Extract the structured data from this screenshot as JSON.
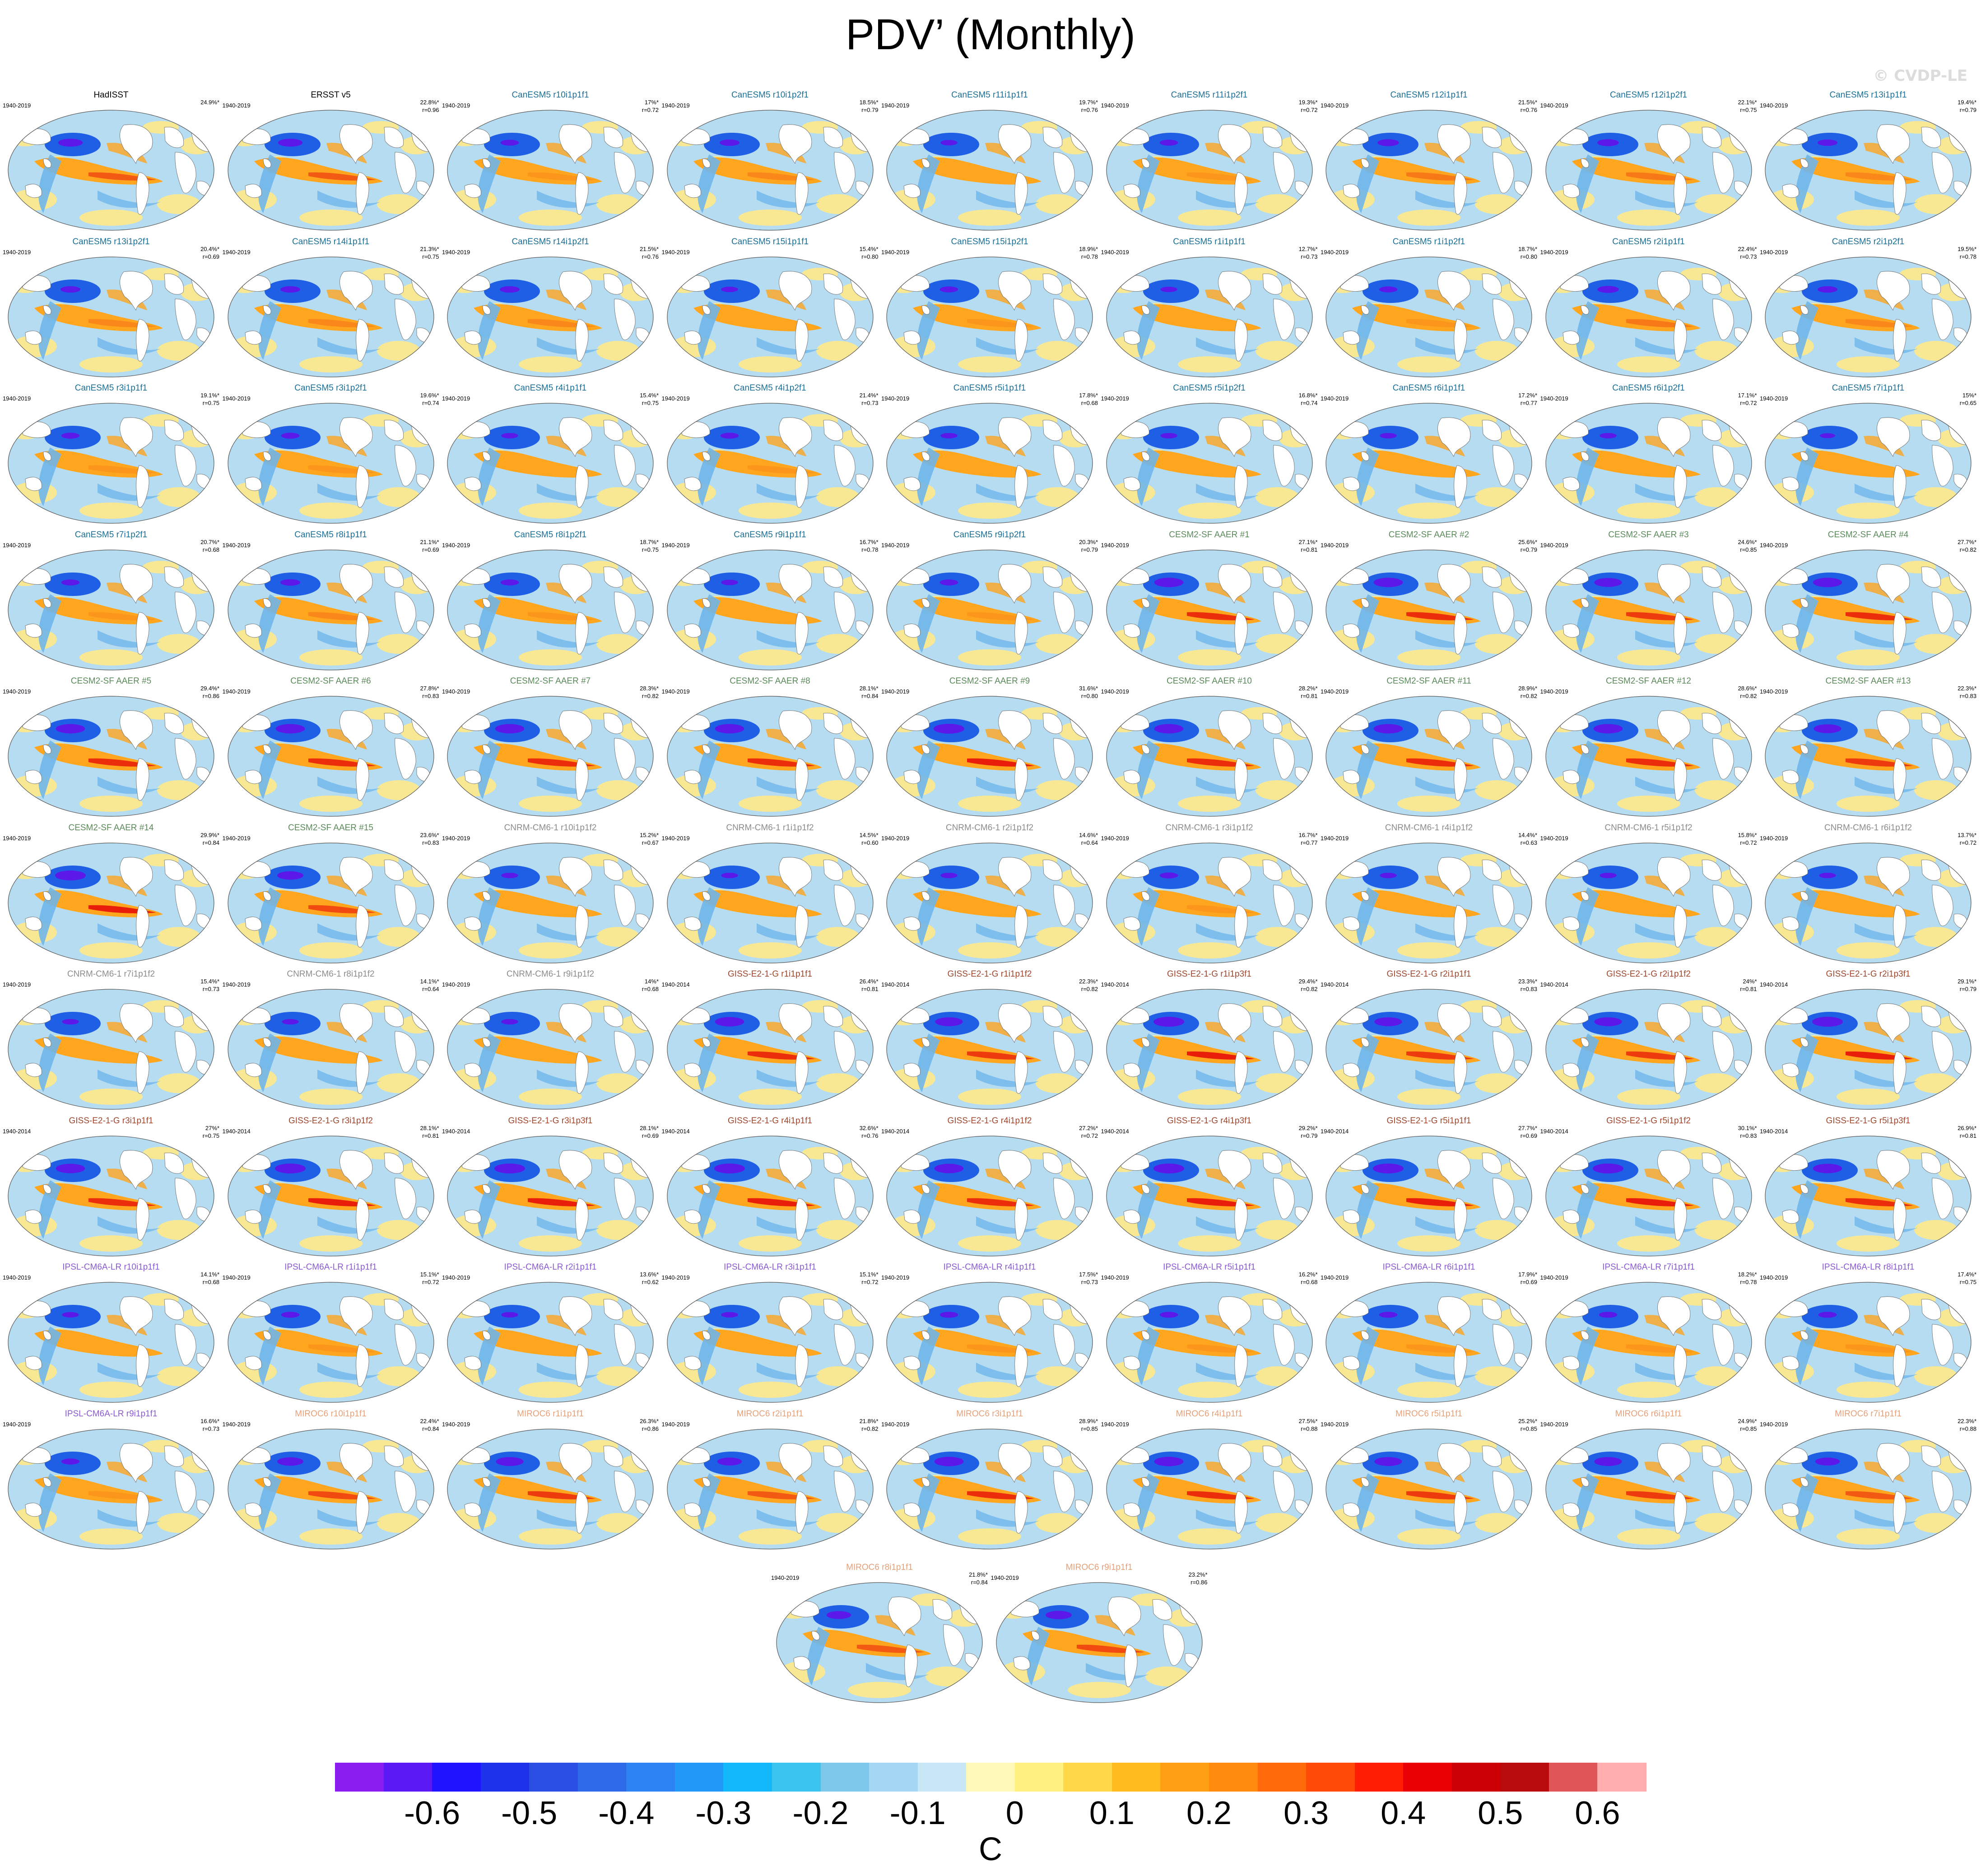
{
  "title": "PDV’ (Monthly)",
  "watermark": "© CVDP-LE",
  "colorbar": {
    "unit": "C",
    "tick_labels": [
      "-0.6",
      "-0.5",
      "-0.4",
      "-0.3",
      "-0.2",
      "-0.1",
      "0",
      "0.1",
      "0.2",
      "0.3",
      "0.4",
      "0.5",
      "0.6"
    ],
    "colors": [
      "#8a1ef0",
      "#5a19f5",
      "#1e14ff",
      "#1e32ec",
      "#2a4ee4",
      "#2d6ae8",
      "#2b84f2",
      "#2299f6",
      "#12b8fa",
      "#3cc4f0",
      "#7ec8ec",
      "#a5d6f2",
      "#c8e6f6",
      "#fff8b8",
      "#fff080",
      "#ffd84a",
      "#ffbc1e",
      "#ffa014",
      "#ff8a0e",
      "#ff6a0a",
      "#ff4a08",
      "#ff1e04",
      "#ea0004",
      "#cc0004",
      "#b80c0c",
      "#e05555",
      "#ffadad"
    ]
  },
  "map_colors": {
    "ocean_base": "#b6dcf2",
    "blue_pool": "#1f5fe6",
    "deep_blue": "#5b18e8",
    "warm_tongue": "#ffa51e",
    "red_core": "#e81e0a",
    "yellow": "#ffe98a",
    "land": "#ffffff"
  },
  "panels": [
    {
      "label": "HadISST",
      "years": "1940-2019",
      "pct": "24.9%*",
      "r": "",
      "color": "#000000",
      "i": 0.8
    },
    {
      "label": "ERSST v5",
      "years": "1940-2019",
      "pct": "22.8%*",
      "r": "r=0.96",
      "color": "#000000",
      "i": 0.8
    },
    {
      "label": "CanESM5 r10i1p1f1",
      "years": "1940-2019",
      "pct": "17%*",
      "r": "r=0.72",
      "color": "#1a6f96",
      "i": 0.6
    },
    {
      "label": "CanESM5 r10i1p2f1",
      "years": "1940-2019",
      "pct": "18.5%*",
      "r": "r=0.79",
      "color": "#1a6f96",
      "i": 0.65
    },
    {
      "label": "CanESM5 r11i1p1f1",
      "years": "1940-2019",
      "pct": "19.7%*",
      "r": "r=0.76",
      "color": "#1a6f96",
      "i": 0.55
    },
    {
      "label": "CanESM5 r11i1p2f1",
      "years": "1940-2019",
      "pct": "19.3%*",
      "r": "r=0.72",
      "color": "#1a6f96",
      "i": 0.6
    },
    {
      "label": "CanESM5 r12i1p1f1",
      "years": "1940-2019",
      "pct": "21.5%*",
      "r": "r=0.76",
      "color": "#1a6f96",
      "i": 0.7
    },
    {
      "label": "CanESM5 r12i1p2f1",
      "years": "1940-2019",
      "pct": "22.1%*",
      "r": "r=0.75",
      "color": "#1a6f96",
      "i": 0.7
    },
    {
      "label": "CanESM5 r13i1p1f1",
      "years": "1940-2019",
      "pct": "19.4%*",
      "r": "r=0.79",
      "color": "#1a6f96",
      "i": 0.65
    },
    {
      "label": "CanESM5 r13i1p2f1",
      "years": "1940-2019",
      "pct": "20.4%*",
      "r": "r=0.69",
      "color": "#1a6f96",
      "i": 0.65
    },
    {
      "label": "CanESM5 r14i1p1f1",
      "years": "1940-2019",
      "pct": "21.3%*",
      "r": "r=0.75",
      "color": "#1a6f96",
      "i": 0.65
    },
    {
      "label": "CanESM5 r14i1p2f1",
      "years": "1940-2019",
      "pct": "21.5%*",
      "r": "r=0.76",
      "color": "#1a6f96",
      "i": 0.65
    },
    {
      "label": "CanESM5 r15i1p1f1",
      "years": "1940-2019",
      "pct": "15.4%*",
      "r": "r=0.80",
      "color": "#1a6f96",
      "i": 0.55
    },
    {
      "label": "CanESM5 r15i1p2f1",
      "years": "1940-2019",
      "pct": "18.9%*",
      "r": "r=0.78",
      "color": "#1a6f96",
      "i": 0.6
    },
    {
      "label": "CanESM5 r1i1p1f1",
      "years": "1940-2019",
      "pct": "12.7%*",
      "r": "r=0.73",
      "color": "#1a6f96",
      "i": 0.55
    },
    {
      "label": "CanESM5 r1i1p2f1",
      "years": "1940-2019",
      "pct": "18.7%*",
      "r": "r=0.80",
      "color": "#1a6f96",
      "i": 0.6
    },
    {
      "label": "CanESM5 r2i1p1f1",
      "years": "1940-2019",
      "pct": "22.4%*",
      "r": "r=0.73",
      "color": "#1a6f96",
      "i": 0.7
    },
    {
      "label": "CanESM5 r2i1p2f1",
      "years": "1940-2019",
      "pct": "19.5%*",
      "r": "r=0.78",
      "color": "#1a6f96",
      "i": 0.65
    },
    {
      "label": "CanESM5 r3i1p1f1",
      "years": "1940-2019",
      "pct": "19.1%*",
      "r": "r=0.75",
      "color": "#1a6f96",
      "i": 0.6
    },
    {
      "label": "CanESM5 r3i1p2f1",
      "years": "1940-2019",
      "pct": "19.6%*",
      "r": "r=0.74",
      "color": "#1a6f96",
      "i": 0.6
    },
    {
      "label": "CanESM5 r4i1p1f1",
      "years": "1940-2019",
      "pct": "15.4%*",
      "r": "r=0.75",
      "color": "#1a6f96",
      "i": 0.55
    },
    {
      "label": "CanESM5 r4i1p2f1",
      "years": "1940-2019",
      "pct": "21.4%*",
      "r": "r=0.73",
      "color": "#1a6f96",
      "i": 0.6
    },
    {
      "label": "CanESM5 r5i1p1f1",
      "years": "1940-2019",
      "pct": "17.8%*",
      "r": "r=0.68",
      "color": "#1a6f96",
      "i": 0.55
    },
    {
      "label": "CanESM5 r5i1p2f1",
      "years": "1940-2019",
      "pct": "16.8%*",
      "r": "r=0.74",
      "color": "#1a6f96",
      "i": 0.55
    },
    {
      "label": "CanESM5 r6i1p1f1",
      "years": "1940-2019",
      "pct": "17.2%*",
      "r": "r=0.77",
      "color": "#1a6f96",
      "i": 0.55
    },
    {
      "label": "CanESM5 r6i1p2f1",
      "years": "1940-2019",
      "pct": "17.1%*",
      "r": "r=0.72",
      "color": "#1a6f96",
      "i": 0.55
    },
    {
      "label": "CanESM5 r7i1p1f1",
      "years": "1940-2019",
      "pct": "15%*",
      "r": "r=0.65",
      "color": "#1a6f96",
      "i": 0.5
    },
    {
      "label": "CanESM5 r7i1p2f1",
      "years": "1940-2019",
      "pct": "20.7%*",
      "r": "r=0.68",
      "color": "#1a6f96",
      "i": 0.6
    },
    {
      "label": "CanESM5 r8i1p1f1",
      "years": "1940-2019",
      "pct": "21.1%*",
      "r": "r=0.69",
      "color": "#1a6f96",
      "i": 0.65
    },
    {
      "label": "CanESM5 r8i1p2f1",
      "years": "1940-2019",
      "pct": "18.7%*",
      "r": "r=0.75",
      "color": "#1a6f96",
      "i": 0.6
    },
    {
      "label": "CanESM5 r9i1p1f1",
      "years": "1940-2019",
      "pct": "16.7%*",
      "r": "r=0.78",
      "color": "#1a6f96",
      "i": 0.55
    },
    {
      "label": "CanESM5 r9i1p2f1",
      "years": "1940-2019",
      "pct": "20.3%*",
      "r": "r=0.79",
      "color": "#1a6f96",
      "i": 0.6
    },
    {
      "label": "CESM2-SF AAER #1",
      "years": "1940-2019",
      "pct": "27.1%*",
      "r": "r=0.81",
      "color": "#5a8a5a",
      "i": 0.95
    },
    {
      "label": "CESM2-SF AAER #2",
      "years": "1940-2019",
      "pct": "25.6%*",
      "r": "r=0.79",
      "color": "#5a8a5a",
      "i": 0.95
    },
    {
      "label": "CESM2-SF AAER #3",
      "years": "1940-2019",
      "pct": "24.6%*",
      "r": "r=0.85",
      "color": "#5a8a5a",
      "i": 0.9
    },
    {
      "label": "CESM2-SF AAER #4",
      "years": "1940-2019",
      "pct": "27.7%*",
      "r": "r=0.82",
      "color": "#5a8a5a",
      "i": 0.95
    },
    {
      "label": "CESM2-SF AAER #5",
      "years": "1940-2019",
      "pct": "29.4%*",
      "r": "r=0.86",
      "color": "#5a8a5a",
      "i": 0.95
    },
    {
      "label": "CESM2-SF AAER #6",
      "years": "1940-2019",
      "pct": "27.8%*",
      "r": "r=0.83",
      "color": "#5a8a5a",
      "i": 0.95
    },
    {
      "label": "CESM2-SF AAER #7",
      "years": "1940-2019",
      "pct": "28.3%*",
      "r": "r=0.82",
      "color": "#5a8a5a",
      "i": 0.95
    },
    {
      "label": "CESM2-SF AAER #8",
      "years": "1940-2019",
      "pct": "28.1%*",
      "r": "r=0.84",
      "color": "#5a8a5a",
      "i": 0.95
    },
    {
      "label": "CESM2-SF AAER #9",
      "years": "1940-2019",
      "pct": "31.6%*",
      "r": "r=0.80",
      "color": "#5a8a5a",
      "i": 1.0
    },
    {
      "label": "CESM2-SF AAER #10",
      "years": "1940-2019",
      "pct": "28.2%*",
      "r": "r=0.81",
      "color": "#5a8a5a",
      "i": 0.95
    },
    {
      "label": "CESM2-SF AAER #11",
      "years": "1940-2019",
      "pct": "28.9%*",
      "r": "r=0.82",
      "color": "#5a8a5a",
      "i": 0.95
    },
    {
      "label": "CESM2-SF AAER #12",
      "years": "1940-2019",
      "pct": "28.6%*",
      "r": "r=0.82",
      "color": "#5a8a5a",
      "i": 0.95
    },
    {
      "label": "CESM2-SF AAER #13",
      "years": "1940-2019",
      "pct": "22.3%*",
      "r": "r=0.83",
      "color": "#5a8a5a",
      "i": 0.9
    },
    {
      "label": "CESM2-SF AAER #14",
      "years": "1940-2019",
      "pct": "29.9%*",
      "r": "r=0.84",
      "color": "#5a8a5a",
      "i": 1.0
    },
    {
      "label": "CESM2-SF AAER #15",
      "years": "1940-2019",
      "pct": "23.6%*",
      "r": "r=0.83",
      "color": "#5a8a5a",
      "i": 0.85
    },
    {
      "label": "CNRM-CM6-1 r10i1p1f2",
      "years": "1940-2019",
      "pct": "15.2%*",
      "r": "r=0.67",
      "color": "#8c8c8c",
      "i": 0.55
    },
    {
      "label": "CNRM-CM6-1 r1i1p1f2",
      "years": "1940-2019",
      "pct": "14.5%*",
      "r": "r=0.60",
      "color": "#8c8c8c",
      "i": 0.55
    },
    {
      "label": "CNRM-CM6-1 r2i1p1f2",
      "years": "1940-2019",
      "pct": "14.6%*",
      "r": "r=0.64",
      "color": "#8c8c8c",
      "i": 0.55
    },
    {
      "label": "CNRM-CM6-1 r3i1p1f2",
      "years": "1940-2019",
      "pct": "16.7%*",
      "r": "r=0.77",
      "color": "#8c8c8c",
      "i": 0.6
    },
    {
      "label": "CNRM-CM6-1 r4i1p1f2",
      "years": "1940-2019",
      "pct": "14.4%*",
      "r": "r=0.63",
      "color": "#8c8c8c",
      "i": 0.55
    },
    {
      "label": "CNRM-CM6-1 r5i1p1f2",
      "years": "1940-2019",
      "pct": "15.8%*",
      "r": "r=0.72",
      "color": "#8c8c8c",
      "i": 0.55
    },
    {
      "label": "CNRM-CM6-1 r6i1p1f2",
      "years": "1940-2019",
      "pct": "13.7%*",
      "r": "r=0.72",
      "color": "#8c8c8c",
      "i": 0.55
    },
    {
      "label": "CNRM-CM6-1 r7i1p1f2",
      "years": "1940-2019",
      "pct": "15.4%*",
      "r": "r=0.73",
      "color": "#8c8c8c",
      "i": 0.55
    },
    {
      "label": "CNRM-CM6-1 r8i1p1f2",
      "years": "1940-2019",
      "pct": "14.1%*",
      "r": "r=0.64",
      "color": "#8c8c8c",
      "i": 0.55
    },
    {
      "label": "CNRM-CM6-1 r9i1p1f2",
      "years": "1940-2019",
      "pct": "14%*",
      "r": "r=0.68",
      "color": "#8c8c8c",
      "i": 0.55
    },
    {
      "label": "GISS-E2-1-G r1i1p1f1",
      "years": "1940-2014",
      "pct": "26.4%*",
      "r": "r=0.81",
      "color": "#a0462d",
      "i": 0.95
    },
    {
      "label": "GISS-E2-1-G r1i1p1f2",
      "years": "1940-2014",
      "pct": "22.3%*",
      "r": "r=0.82",
      "color": "#a0462d",
      "i": 0.9
    },
    {
      "label": "GISS-E2-1-G r1i1p3f1",
      "years": "1940-2014",
      "pct": "29.4%*",
      "r": "r=0.82",
      "color": "#a0462d",
      "i": 1.0
    },
    {
      "label": "GISS-E2-1-G r2i1p1f1",
      "years": "1940-2014",
      "pct": "23.3%*",
      "r": "r=0.83",
      "color": "#a0462d",
      "i": 0.9
    },
    {
      "label": "GISS-E2-1-G r2i1p1f2",
      "years": "1940-2014",
      "pct": "24%*",
      "r": "r=0.81",
      "color": "#a0462d",
      "i": 0.9
    },
    {
      "label": "GISS-E2-1-G r2i1p3f1",
      "years": "1940-2014",
      "pct": "29.1%*",
      "r": "r=0.79",
      "color": "#a0462d",
      "i": 1.0
    },
    {
      "label": "GISS-E2-1-G r3i1p1f1",
      "years": "1940-2014",
      "pct": "27%*",
      "r": "r=0.75",
      "color": "#a0462d",
      "i": 0.95
    },
    {
      "label": "GISS-E2-1-G r3i1p1f2",
      "years": "1940-2014",
      "pct": "28.1%*",
      "r": "r=0.81",
      "color": "#a0462d",
      "i": 1.0
    },
    {
      "label": "GISS-E2-1-G r3i1p3f1",
      "years": "1940-2014",
      "pct": "28.1%*",
      "r": "r=0.69",
      "color": "#a0462d",
      "i": 1.0
    },
    {
      "label": "GISS-E2-1-G r4i1p1f1",
      "years": "1940-2014",
      "pct": "32.6%*",
      "r": "r=0.76",
      "color": "#a0462d",
      "i": 1.0
    },
    {
      "label": "GISS-E2-1-G r4i1p1f2",
      "years": "1940-2014",
      "pct": "27.2%*",
      "r": "r=0.72",
      "color": "#a0462d",
      "i": 0.95
    },
    {
      "label": "GISS-E2-1-G r4i1p3f1",
      "years": "1940-2014",
      "pct": "29.2%*",
      "r": "r=0.79",
      "color": "#a0462d",
      "i": 1.0
    },
    {
      "label": "GISS-E2-1-G r5i1p1f1",
      "years": "1940-2014",
      "pct": "27.7%*",
      "r": "r=0.69",
      "color": "#a0462d",
      "i": 1.0
    },
    {
      "label": "GISS-E2-1-G r5i1p1f2",
      "years": "1940-2014",
      "pct": "30.1%*",
      "r": "r=0.83",
      "color": "#a0462d",
      "i": 1.0
    },
    {
      "label": "GISS-E2-1-G r5i1p3f1",
      "years": "1940-2014",
      "pct": "26.9%*",
      "r": "r=0.81",
      "color": "#a0462d",
      "i": 0.95
    },
    {
      "label": "IPSL-CM6A-LR r10i1p1f1",
      "years": "1940-2019",
      "pct": "14.1%*",
      "r": "r=0.68",
      "color": "#8a5ad2",
      "i": 0.55
    },
    {
      "label": "IPSL-CM6A-LR r1i1p1f1",
      "years": "1940-2019",
      "pct": "15.1%*",
      "r": "r=0.72",
      "color": "#8a5ad2",
      "i": 0.6
    },
    {
      "label": "IPSL-CM6A-LR r2i1p1f1",
      "years": "1940-2019",
      "pct": "13.6%*",
      "r": "r=0.62",
      "color": "#8a5ad2",
      "i": 0.55
    },
    {
      "label": "IPSL-CM6A-LR r3i1p1f1",
      "years": "1940-2019",
      "pct": "15.1%*",
      "r": "r=0.72",
      "color": "#8a5ad2",
      "i": 0.55
    },
    {
      "label": "IPSL-CM6A-LR r4i1p1f1",
      "years": "1940-2019",
      "pct": "17.5%*",
      "r": "r=0.73",
      "color": "#8a5ad2",
      "i": 0.6
    },
    {
      "label": "IPSL-CM6A-LR r5i1p1f1",
      "years": "1940-2019",
      "pct": "16.2%*",
      "r": "r=0.68",
      "color": "#8a5ad2",
      "i": 0.6
    },
    {
      "label": "IPSL-CM6A-LR r6i1p1f1",
      "years": "1940-2019",
      "pct": "17.9%*",
      "r": "r=0.69",
      "color": "#8a5ad2",
      "i": 0.6
    },
    {
      "label": "IPSL-CM6A-LR r7i1p1f1",
      "years": "1940-2019",
      "pct": "18.2%*",
      "r": "r=0.78",
      "color": "#8a5ad2",
      "i": 0.6
    },
    {
      "label": "IPSL-CM6A-LR r8i1p1f1",
      "years": "1940-2019",
      "pct": "17.4%*",
      "r": "r=0.75",
      "color": "#8a5ad2",
      "i": 0.6
    },
    {
      "label": "IPSL-CM6A-LR r9i1p1f1",
      "years": "1940-2019",
      "pct": "16.6%*",
      "r": "r=0.73",
      "color": "#8a5ad2",
      "i": 0.6
    },
    {
      "label": "MIROC6 r10i1p1f1",
      "years": "1940-2019",
      "pct": "22.4%*",
      "r": "r=0.84",
      "color": "#e6a078",
      "i": 0.85
    },
    {
      "label": "MIROC6 r1i1p1f1",
      "years": "1940-2019",
      "pct": "26.3%*",
      "r": "r=0.86",
      "color": "#e6a078",
      "i": 0.9
    },
    {
      "label": "MIROC6 r2i1p1f1",
      "years": "1940-2019",
      "pct": "21.8%*",
      "r": "r=0.82",
      "color": "#e6a078",
      "i": 0.8
    },
    {
      "label": "MIROC6 r3i1p1f1",
      "years": "1940-2019",
      "pct": "28.9%*",
      "r": "r=0.85",
      "color": "#e6a078",
      "i": 0.95
    },
    {
      "label": "MIROC6 r4i1p1f1",
      "years": "1940-2019",
      "pct": "27.5%*",
      "r": "r=0.88",
      "color": "#e6a078",
      "i": 0.95
    },
    {
      "label": "MIROC6 r5i1p1f1",
      "years": "1940-2019",
      "pct": "25.2%*",
      "r": "r=0.85",
      "color": "#e6a078",
      "i": 0.9
    },
    {
      "label": "MIROC6 r6i1p1f1",
      "years": "1940-2019",
      "pct": "24.9%*",
      "r": "r=0.85",
      "color": "#e6a078",
      "i": 0.9
    },
    {
      "label": "MIROC6 r7i1p1f1",
      "years": "1940-2019",
      "pct": "22.3%*",
      "r": "r=0.88",
      "color": "#e6a078",
      "i": 0.8
    },
    {
      "label": "MIROC6 r8i1p1f1",
      "years": "1940-2019",
      "pct": "21.8%*",
      "r": "r=0.84",
      "color": "#e6a078",
      "i": 0.8
    },
    {
      "label": "MIROC6 r9i1p1f1",
      "years": "1940-2019",
      "pct": "23.2%*",
      "r": "r=0.86",
      "color": "#e6a078",
      "i": 0.85
    }
  ]
}
